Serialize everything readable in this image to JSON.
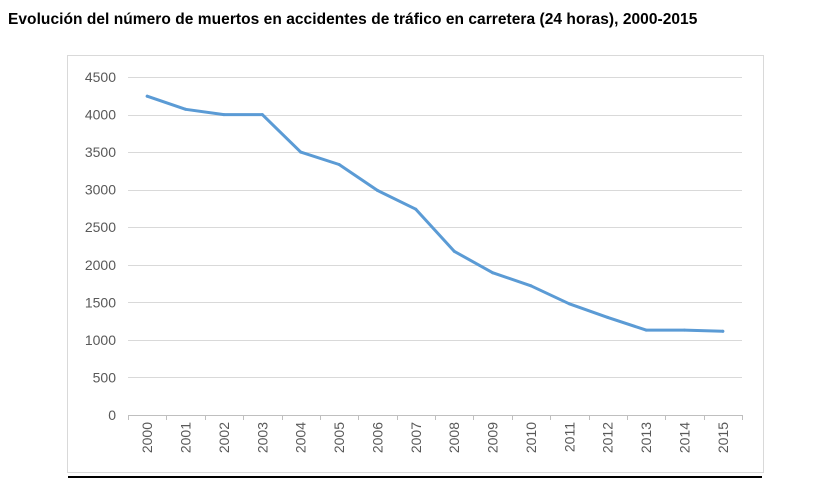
{
  "chart_data": {
    "type": "line",
    "title": "Evolución del número de muertos en accidentes de tráfico en carretera (24 horas), 2000-2015",
    "xlabel": "",
    "ylabel": "",
    "x": [
      "2000",
      "2001",
      "2002",
      "2003",
      "2004",
      "2005",
      "2006",
      "2007",
      "2008",
      "2009",
      "2010",
      "2011",
      "2012",
      "2013",
      "2014",
      "2015"
    ],
    "series": [
      {
        "values": [
          4245,
          4070,
          4000,
          4000,
          3500,
          3335,
          2990,
          2740,
          2180,
          1895,
          1720,
          1480,
          1300,
          1130,
          1130,
          1115
        ]
      }
    ],
    "ylim": [
      0,
      4500
    ],
    "yticks": [
      0,
      500,
      1000,
      1500,
      2000,
      2500,
      3000,
      3500,
      4000,
      4500
    ],
    "grid": true,
    "legend": "none",
    "colors": {
      "line": "#5b9bd5",
      "grid": "#d9d9d9",
      "axis": "#bfbfbf",
      "tick_text": "#595959"
    }
  }
}
